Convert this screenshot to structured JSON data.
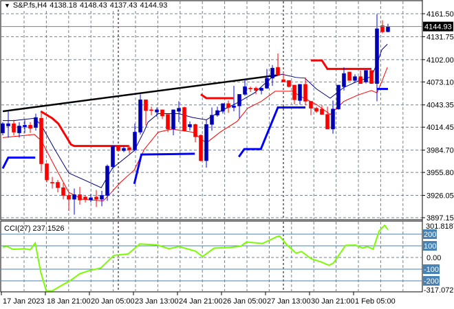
{
  "header": {
    "symbol": "S&P.fs,H4",
    "open": "4138.18",
    "high": "4148.43",
    "low": "4137.43",
    "close": "4144.93",
    "menu_icon": "triangle-down-icon"
  },
  "colors": {
    "bull": "#0000a8",
    "bull_wick": "#0000ff",
    "bear": "#ff0000",
    "ma_fast": "#000080",
    "ma_slow": "#ff0000",
    "cci": "#7cfc00",
    "level": "#4682b4",
    "grid": "#708090"
  },
  "chart_data": [
    {
      "type": "candlestick",
      "title": "S&P.fs,H4",
      "ylim": [
        3897.15,
        4161.5
      ],
      "y_ticks": [
        "4161.50",
        "4131.75",
        "4102.00",
        "4073.10",
        "4043.35",
        "4014.45",
        "3984.70",
        "3955.80",
        "3926.05",
        "3897.15"
      ],
      "current_price": "4144.93",
      "x_tick_labels": [
        "17 Jan 2023",
        "18 Jan 21:00",
        "20 Jan 05:00",
        "23 Jan 13:00",
        "24 Jan 21:00",
        "26 Jan 05:00",
        "27 Jan 13:00",
        "30 Jan 21:00",
        "1 Feb 05:00"
      ],
      "x_tick_index": [
        0,
        8,
        16,
        24,
        32,
        40,
        48,
        56,
        64
      ],
      "ohlc": [
        [
          4007,
          4021,
          4004,
          4019
        ],
        [
          4016,
          4035,
          4001,
          4019
        ],
        [
          4019,
          4024,
          4004,
          4008
        ],
        [
          4007,
          4021,
          4001,
          4016
        ],
        [
          4015,
          4024,
          4007,
          4017
        ],
        [
          4017,
          4021,
          4007,
          4013
        ],
        [
          4014,
          4032,
          4010,
          4027
        ],
        [
          4026,
          4035,
          3957,
          3967
        ],
        [
          3967,
          3968,
          3943,
          3946
        ],
        [
          3943,
          3950,
          3935,
          3942
        ],
        [
          3943,
          3946,
          3930,
          3936
        ],
        [
          3936,
          3942,
          3921,
          3926
        ],
        [
          3926,
          3930,
          3906,
          3921
        ],
        [
          3921,
          3935,
          3901,
          3927
        ],
        [
          3927,
          3937,
          3914,
          3920
        ],
        [
          3924,
          3926,
          3917,
          3921
        ],
        [
          3920,
          3928,
          3917,
          3923
        ],
        [
          3924,
          3933,
          3911,
          3921
        ],
        [
          3921,
          3932,
          3912,
          3926
        ],
        [
          3926,
          3966,
          3919,
          3964
        ],
        [
          3963,
          3990,
          3960,
          3990
        ],
        [
          3990,
          3990,
          3983,
          3984
        ],
        [
          3984,
          3989,
          3982,
          3987
        ],
        [
          3988,
          3991,
          3980,
          3985
        ],
        [
          3985,
          4019,
          3984,
          4008
        ],
        [
          4008,
          4057,
          4005,
          4050
        ],
        [
          4050,
          4050,
          4017,
          4036
        ],
        [
          4037,
          4041,
          4030,
          4036
        ],
        [
          4034,
          4040,
          4028,
          4037
        ],
        [
          4037,
          4037,
          4025,
          4029
        ],
        [
          4031,
          4031,
          4008,
          4012
        ],
        [
          4012,
          4037,
          4004,
          4037
        ],
        [
          4035,
          4048,
          4021,
          4039
        ],
        [
          4040,
          4041,
          4009,
          4010
        ],
        [
          4015,
          4022,
          4010,
          4018
        ],
        [
          4018,
          4019,
          3995,
          4002
        ],
        [
          4004,
          4005,
          3970,
          3971
        ],
        [
          3971,
          4024,
          3962,
          4018
        ],
        [
          4018,
          4040,
          4010,
          4030
        ],
        [
          4030,
          4041,
          4028,
          4036
        ],
        [
          4035,
          4045,
          4032,
          4045
        ],
        [
          4045,
          4049,
          4033,
          4040
        ],
        [
          4040,
          4068,
          4035,
          4042
        ],
        [
          4042,
          4057,
          4026,
          4057
        ],
        [
          4057,
          4077,
          4055,
          4067
        ],
        [
          4065,
          4067,
          4060,
          4064
        ],
        [
          4065,
          4067,
          4057,
          4062
        ],
        [
          4062,
          4066,
          4057,
          4065
        ],
        [
          4065,
          4090,
          4064,
          4078
        ],
        [
          4078,
          4095,
          4068,
          4091
        ],
        [
          4092,
          4110,
          4081,
          4082
        ],
        [
          4076,
          4086,
          4073,
          4073
        ],
        [
          4075,
          4075,
          4066,
          4067
        ],
        [
          4069,
          4069,
          4044,
          4050
        ],
        [
          4049,
          4070,
          4044,
          4070
        ],
        [
          4070,
          4079,
          4043,
          4048
        ],
        [
          4048,
          4048,
          4030,
          4039
        ],
        [
          4039,
          4041,
          4033,
          4035
        ],
        [
          4038,
          4043,
          4031,
          4031
        ],
        [
          4031,
          4041,
          4012,
          4012
        ],
        [
          4012,
          4049,
          4006,
          4038
        ],
        [
          4038,
          4069,
          4037,
          4069
        ],
        [
          4067,
          4092,
          4062,
          4084
        ],
        [
          4086,
          4086,
          4075,
          4075
        ],
        [
          4075,
          4083,
          4072,
          4080
        ],
        [
          4080,
          4088,
          4071,
          4071
        ],
        [
          4073,
          4088,
          4071,
          4088
        ],
        [
          4088,
          4088,
          4071,
          4071
        ],
        [
          4071,
          4161,
          4048,
          4142
        ],
        [
          4146,
          4153,
          4136,
          4138
        ],
        [
          4138.18,
          4148.43,
          4137.43,
          4144.93
        ]
      ],
      "overlays": {
        "ma_fast": [
          [
            0,
            4023
          ],
          [
            2,
            4023
          ],
          [
            5.75,
            4026
          ],
          [
            7,
            4017
          ],
          [
            9.5,
            3985
          ],
          [
            12,
            3955
          ],
          [
            15.75,
            3943
          ],
          [
            17.9,
            3936
          ],
          [
            19.9,
            3961
          ],
          [
            23.9,
            3984
          ],
          [
            25.75,
            4010
          ],
          [
            26.4,
            4021
          ],
          [
            28.25,
            4032
          ],
          [
            32,
            4032
          ],
          [
            34.5,
            4027
          ],
          [
            37,
            4024
          ],
          [
            39.5,
            4035
          ],
          [
            42.6,
            4046
          ],
          [
            45.75,
            4059
          ],
          [
            48.9,
            4079
          ],
          [
            50.75,
            4083
          ],
          [
            53.25,
            4079
          ],
          [
            54.9,
            4078
          ],
          [
            57,
            4064
          ],
          [
            59.5,
            4052
          ],
          [
            62,
            4066
          ],
          [
            64.5,
            4074
          ],
          [
            67,
            4080
          ],
          [
            68,
            4097
          ],
          [
            68.9,
            4115
          ],
          [
            69.9,
            4122
          ]
        ],
        "ma_slow": [
          [
            0,
            4001
          ],
          [
            5.75,
            4005
          ],
          [
            7,
            3997
          ],
          [
            9.5,
            3963
          ],
          [
            12,
            3930
          ],
          [
            14.5,
            3921
          ],
          [
            18.25,
            3919
          ],
          [
            19.5,
            3928
          ],
          [
            21.4,
            3943
          ],
          [
            23.9,
            3959
          ],
          [
            25.75,
            3986
          ],
          [
            28.25,
            4008
          ],
          [
            30.75,
            4012
          ],
          [
            34.5,
            4008
          ],
          [
            37,
            3994
          ],
          [
            39.5,
            4008
          ],
          [
            42.6,
            4022
          ],
          [
            44.5,
            4039
          ],
          [
            47,
            4048
          ],
          [
            49.5,
            4061
          ],
          [
            52.6,
            4061
          ],
          [
            54.5,
            4053
          ],
          [
            57,
            4044
          ],
          [
            59.5,
            4031
          ],
          [
            62,
            4048
          ],
          [
            64.5,
            4056
          ],
          [
            67,
            4062
          ],
          [
            68,
            4059
          ],
          [
            68.9,
            4074
          ],
          [
            69.9,
            4092
          ]
        ],
        "stop_upper": [
          [
            [
              6.9,
              4035
            ],
            [
              9,
              4026
            ],
            [
              10.1,
              4019
            ],
            [
              12.4,
              3992
            ],
            [
              13,
              3990
            ],
            [
              22.9,
              3990
            ]
          ],
          [
            [
              36,
              4057
            ],
            [
              37,
              4052
            ],
            [
              41.9,
              4052
            ]
          ],
          [
            [
              56,
              4101
            ],
            [
              58,
              4101
            ],
            [
              59,
              4090
            ],
            [
              67,
              4090
            ]
          ]
        ],
        "stop_lower": [
          [
            [
              0,
              3961
            ],
            [
              1,
              3975
            ],
            [
              5.9,
              3975
            ]
          ],
          [
            [
              23.9,
              3941
            ],
            [
              25.2,
              3979
            ],
            [
              34.9,
              3980
            ]
          ],
          [
            [
              42.9,
              3976
            ],
            [
              43.9,
              3986
            ],
            [
              46.9,
              3986
            ],
            [
              50,
              4040
            ],
            [
              55,
              4040
            ]
          ],
          [
            [
              68,
              4064
            ],
            [
              70,
              4064
            ]
          ]
        ],
        "trendline": [
          [
            0,
            4035
          ],
          [
            50,
            4082
          ]
        ]
      }
    },
    {
      "type": "line",
      "title": "CCI(27) 237.1526",
      "ylim": [
        -317.0721,
        301.8187
      ],
      "y_max_label": "301.8187",
      "y_min_label": "-317.0721",
      "levels": [
        "200",
        "100",
        "0.00",
        "-100",
        "-200"
      ],
      "level_values": [
        200,
        100,
        0,
        -100,
        -200
      ],
      "points": [
        [
          0,
          90
        ],
        [
          0.8,
          94
        ],
        [
          1.9,
          70
        ],
        [
          4,
          75
        ],
        [
          5,
          67
        ],
        [
          5.9,
          124
        ],
        [
          6.9,
          -125
        ],
        [
          7.9,
          -286
        ],
        [
          9,
          -286
        ],
        [
          10.9,
          -233
        ],
        [
          12.2,
          -200
        ],
        [
          14,
          -139
        ],
        [
          15.9,
          -110
        ],
        [
          17.8,
          -90
        ],
        [
          20.2,
          18
        ],
        [
          22.8,
          31
        ],
        [
          24.9,
          116
        ],
        [
          28,
          108
        ],
        [
          30.2,
          75
        ],
        [
          32,
          94
        ],
        [
          35,
          55
        ],
        [
          36.3,
          8
        ],
        [
          38.4,
          80
        ],
        [
          41.3,
          86
        ],
        [
          43.2,
          96
        ],
        [
          44.3,
          133
        ],
        [
          47.2,
          120
        ],
        [
          49.8,
          178
        ],
        [
          50.3,
          184
        ],
        [
          51.6,
          110
        ],
        [
          53.3,
          37
        ],
        [
          54.3,
          51
        ],
        [
          56.1,
          -12
        ],
        [
          57.8,
          -37
        ],
        [
          59.3,
          -67
        ],
        [
          60.1,
          -47
        ],
        [
          62.3,
          104
        ],
        [
          64.1,
          106
        ],
        [
          65.4,
          80
        ],
        [
          66.2,
          94
        ],
        [
          67.3,
          71
        ],
        [
          68.4,
          227
        ],
        [
          69.4,
          276
        ],
        [
          70,
          237
        ]
      ]
    }
  ]
}
